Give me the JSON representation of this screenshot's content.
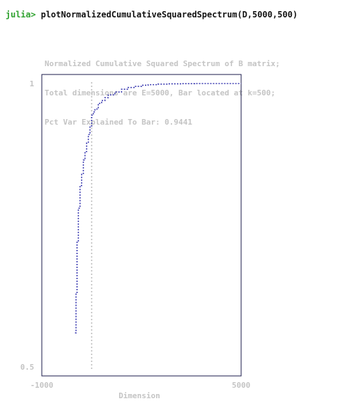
{
  "terminal": {
    "prompt": "julia>",
    "command": "plotNormalizedCumulativeSquaredSpectrum(D,5000,500)"
  },
  "plot": {
    "caption_lines": [
      "Normalized Cumulative Squared Spectrum of B matrix;",
      "Total dimensions are E=5000, Bar located at k=500;",
      "Pct Var Explained To Bar: 0.9441"
    ],
    "colors": {
      "series": "#3a3ab0",
      "bar": "#bdbdbd",
      "frame": "#1a1a4a",
      "text": "#c4c4c4"
    }
  },
  "chart_data": {
    "type": "line",
    "title": "Normalized Cumulative Squared Spectrum of B matrix; Total dimensions are E=5000, Bar located at k=500; Pct Var Explained To Bar: 0.9441",
    "xlabel": "Dimension",
    "ylabel": "",
    "xlim": [
      -1000,
      5000
    ],
    "ylim": [
      0.5,
      1
    ],
    "x_ticks": [
      "-1000",
      "5000"
    ],
    "y_ticks": [
      "0.5",
      "1"
    ],
    "bar_x": 500,
    "series": [
      {
        "x": [
          0,
          30,
          60,
          100,
          150,
          200,
          250,
          300,
          350,
          400,
          450,
          500,
          550,
          600,
          700,
          800,
          900,
          1000,
          1200,
          1400,
          1600,
          1800,
          2000,
          2200,
          2500,
          2800,
          3200,
          3600,
          4000,
          4500,
          5000
        ],
        "y": [
          0.56,
          0.63,
          0.72,
          0.78,
          0.82,
          0.84,
          0.865,
          0.88,
          0.895,
          0.91,
          0.925,
          0.9441,
          0.95,
          0.955,
          0.965,
          0.97,
          0.975,
          0.98,
          0.985,
          0.99,
          0.993,
          0.995,
          0.997,
          0.998,
          0.999,
          0.9995,
          0.9998,
          1.0,
          1.0,
          1.0,
          1.0
        ]
      }
    ]
  }
}
